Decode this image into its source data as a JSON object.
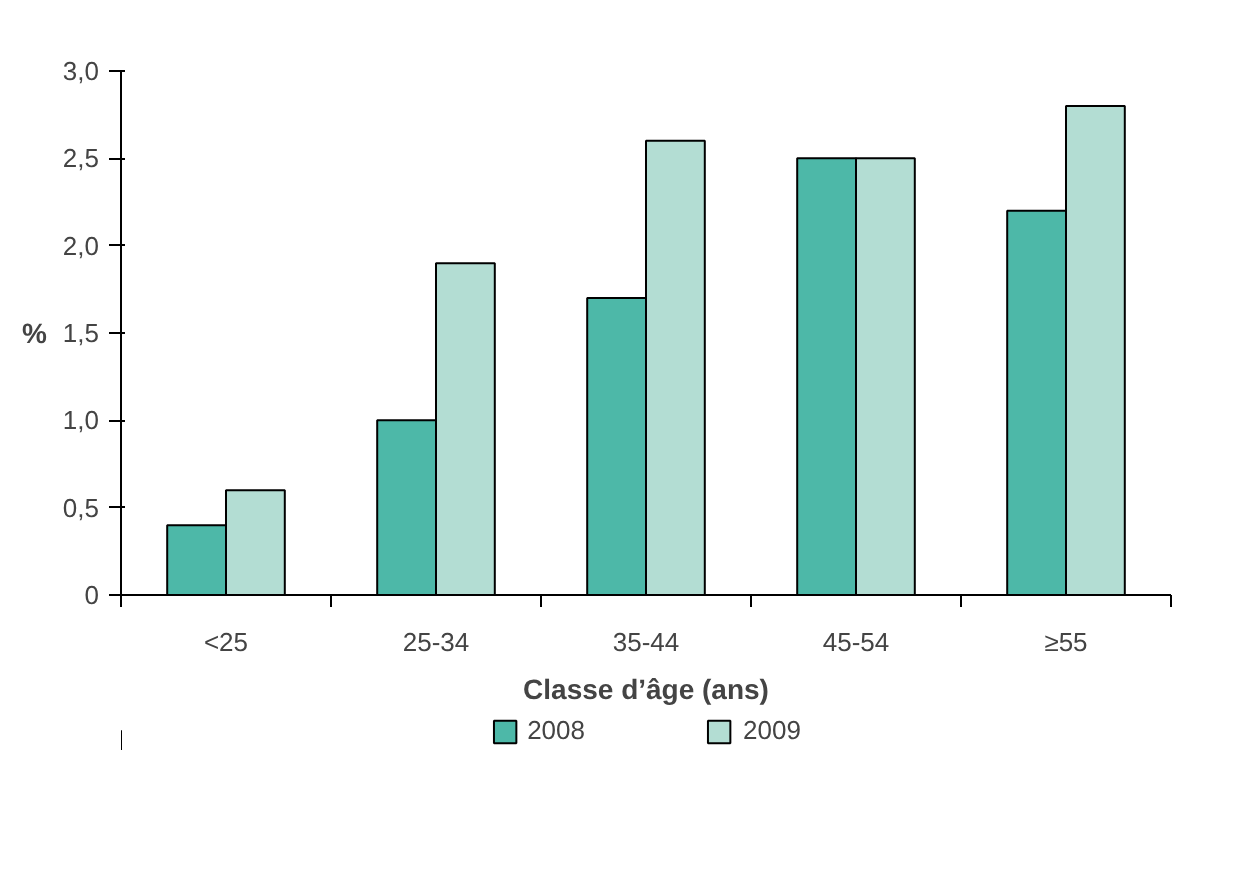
{
  "chart_data": {
    "type": "bar",
    "xlabel": "Classe d’âge (ans)",
    "ylabel": "%",
    "categories": [
      "<25",
      "25-34",
      "35-44",
      "45-54",
      "≥55"
    ],
    "series": [
      {
        "name": "2008",
        "color": "#4db8a8",
        "values": [
          0.4,
          1.0,
          1.7,
          2.5,
          2.2
        ]
      },
      {
        "name": "2009",
        "color": "#b3ddd3",
        "values": [
          0.6,
          1.9,
          2.6,
          2.5,
          2.8
        ]
      }
    ],
    "ylim": [
      0,
      3.0
    ],
    "yticks": [
      0,
      {
        "value": 0.5,
        "label": "0,5"
      },
      {
        "value": 1.0,
        "label": "1,0"
      },
      {
        "value": 1.5,
        "label": "1,5"
      },
      {
        "value": 2.0,
        "label": "2,0"
      },
      {
        "value": 2.5,
        "label": "2,5"
      },
      {
        "value": 3.0,
        "label": "3,0"
      }
    ],
    "grid": false,
    "legend": "bottom"
  }
}
